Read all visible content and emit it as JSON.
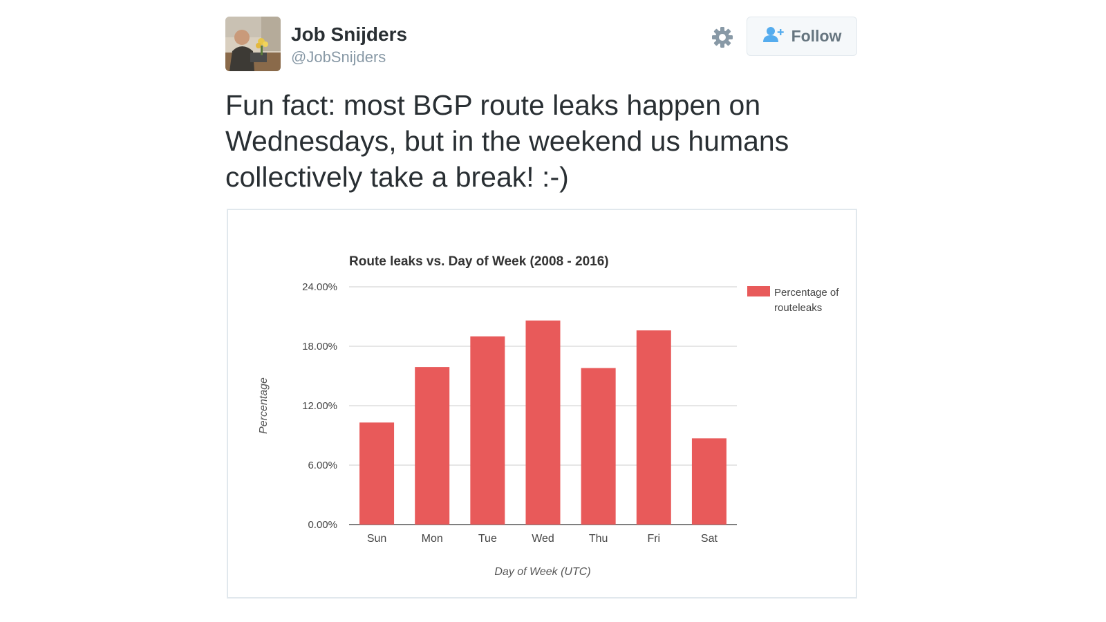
{
  "tweet": {
    "display_name": "Job Snijders",
    "handle": "@JobSnijders",
    "follow_label": "Follow",
    "text": "Fun fact: most BGP route leaks happen on Wednesdays, but in the weekend us humans collectively take a break! :-)"
  },
  "icons": {
    "settings": "gear-icon",
    "follow": "add-user-icon"
  },
  "colors": {
    "bar": "#e85a5a",
    "follow_icon": "#55acee",
    "handle": "#8899a6"
  },
  "chart_data": {
    "type": "bar",
    "title": "Route leaks vs. Day of Week (2008 - 2016)",
    "xlabel": "Day of Week (UTC)",
    "ylabel": "Percentage",
    "categories": [
      "Sun",
      "Mon",
      "Tue",
      "Wed",
      "Thu",
      "Fri",
      "Sat"
    ],
    "series": [
      {
        "name": "Percentage of routeleaks",
        "values": [
          10.3,
          15.9,
          19.0,
          20.6,
          15.8,
          19.6,
          8.7
        ]
      }
    ],
    "ylim": [
      0,
      24
    ],
    "yticks": [
      "0.00%",
      "6.00%",
      "12.00%",
      "18.00%",
      "24.00%"
    ],
    "ytick_values": [
      0,
      6,
      12,
      18,
      24
    ],
    "grid": true,
    "legend": "right",
    "legend_lines": [
      "Percentage of",
      "routeleaks"
    ]
  }
}
